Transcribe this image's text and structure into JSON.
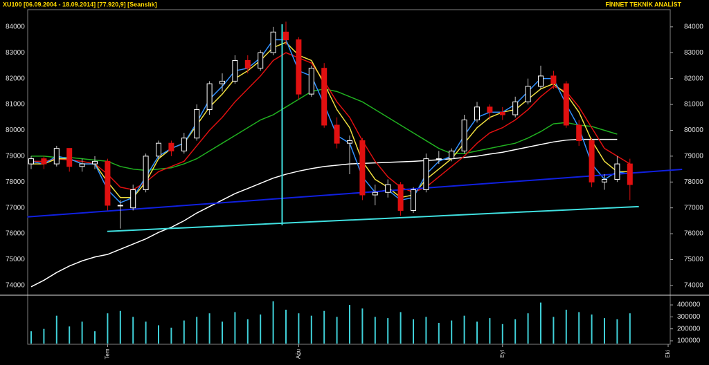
{
  "chart_data": {
    "type": "candlestick",
    "header_left": "XU100  [06.09.2004 - 18.09.2014]  [77.920,9]  [Seanslık]",
    "header_right": "FİNNET TEKNİK ANALİST",
    "categories": [
      null,
      null,
      null,
      null,
      null,
      null,
      "Tem",
      null,
      null,
      null,
      null,
      null,
      null,
      null,
      null,
      null,
      null,
      null,
      null,
      null,
      null,
      "Ağu",
      null,
      null,
      null,
      null,
      null,
      null,
      null,
      null,
      null,
      null,
      null,
      null,
      null,
      null,
      null,
      "Eyl",
      null,
      null,
      null,
      null,
      null,
      null,
      null,
      null,
      null,
      null,
      null,
      null,
      "Eki"
    ],
    "open": [
      78700,
      78900,
      78700,
      79300,
      78600,
      78700,
      78800,
      77100,
      77000,
      77700,
      79000,
      79500,
      79200,
      79700,
      80800,
      81800,
      81900,
      82700,
      82400,
      83000,
      83800,
      83500,
      81400,
      82400,
      80200,
      79500,
      79600,
      77500,
      77600,
      77900,
      76900,
      77700,
      78900,
      78900,
      79200,
      80400,
      80900,
      80700,
      80600,
      81100,
      81700,
      82100,
      81800,
      80200,
      79600,
      78000,
      78100,
      78700,
      null,
      null,
      null
    ],
    "high": [
      79000,
      79000,
      79400,
      79300,
      78900,
      79000,
      78900,
      77300,
      77900,
      79100,
      79600,
      79600,
      79900,
      81000,
      81900,
      82200,
      82900,
      82900,
      83100,
      84000,
      84200,
      83600,
      82500,
      82600,
      80500,
      79800,
      79700,
      77900,
      78100,
      78000,
      77800,
      79100,
      79200,
      79300,
      80600,
      81100,
      81000,
      80900,
      81300,
      82000,
      82500,
      82300,
      81900,
      80400,
      79700,
      78300,
      79000,
      78900,
      null,
      null,
      null
    ],
    "low": [
      78500,
      78500,
      78600,
      78400,
      78400,
      78500,
      76900,
      76200,
      76900,
      77600,
      78900,
      79000,
      79100,
      79600,
      80600,
      81500,
      81800,
      82200,
      82300,
      82900,
      83300,
      81200,
      81300,
      80100,
      79300,
      78300,
      77300,
      77100,
      77400,
      76700,
      76800,
      77600,
      78700,
      78800,
      79100,
      80300,
      80400,
      80400,
      80500,
      81000,
      81600,
      81600,
      80100,
      79400,
      77800,
      77700,
      78000,
      77300,
      null,
      null,
      null
    ],
    "close": [
      78900,
      78700,
      79300,
      78600,
      78700,
      78800,
      77100,
      77100,
      77700,
      79000,
      79500,
      79200,
      79700,
      80800,
      81800,
      81900,
      82700,
      82400,
      83000,
      83800,
      83500,
      81400,
      82400,
      80200,
      79500,
      79600,
      77500,
      77600,
      77900,
      76900,
      77700,
      78900,
      78900,
      79200,
      80400,
      80900,
      80700,
      80600,
      81100,
      81700,
      82100,
      81800,
      80200,
      79600,
      78000,
      78100,
      78700,
      77900,
      null,
      null,
      null
    ],
    "up_color": "#ffffff",
    "down_color": "#e01010",
    "ylim": [
      73650,
      84290
    ],
    "yticks": [
      74000,
      75000,
      76000,
      77000,
      78000,
      79000,
      80000,
      81000,
      82000,
      83000,
      84000
    ],
    "ma_lines": [
      {
        "color": "#ffffff",
        "values": [
          73950,
          74200,
          74500,
          74750,
          74950,
          75100,
          75200,
          75400,
          75600,
          75800,
          76050,
          76250,
          76500,
          76800,
          77050,
          77300,
          77550,
          77750,
          77950,
          78150,
          78300,
          78420,
          78520,
          78600,
          78650,
          78700,
          78720,
          78740,
          78760,
          78780,
          78800,
          78830,
          78860,
          78900,
          78950,
          79000,
          79080,
          79150,
          79250,
          79350,
          79450,
          79550,
          79620,
          79650,
          79650,
          79650,
          79650,
          null,
          null,
          null,
          null
        ]
      },
      {
        "color": "#20b020",
        "values": [
          79000,
          79000,
          78950,
          78950,
          78900,
          78850,
          78800,
          78600,
          78500,
          78450,
          78500,
          78550,
          78700,
          78900,
          79200,
          79500,
          79800,
          80100,
          80400,
          80600,
          80900,
          81200,
          81500,
          81600,
          81500,
          81300,
          81100,
          80800,
          80500,
          80200,
          79900,
          79600,
          79300,
          79100,
          79100,
          79200,
          79300,
          79400,
          79500,
          79700,
          79950,
          80250,
          80300,
          80200,
          80150,
          80000,
          79850,
          null,
          null,
          null,
          null
        ]
      },
      {
        "color": "#e01010",
        "values": [
          78800,
          78800,
          78900,
          78850,
          78800,
          78700,
          78300,
          77800,
          77700,
          78000,
          78400,
          78600,
          78800,
          79400,
          80000,
          80500,
          81100,
          81600,
          82100,
          82700,
          83000,
          82800,
          82600,
          81900,
          81100,
          80500,
          79600,
          78800,
          78200,
          77800,
          77600,
          77800,
          78200,
          78600,
          79000,
          79500,
          79900,
          80100,
          80400,
          80800,
          81300,
          81700,
          81500,
          80900,
          80100,
          79300,
          79000,
          78700,
          null,
          null,
          null
        ]
      },
      {
        "color": "#f0e040",
        "values": [
          78700,
          78700,
          78900,
          78900,
          78700,
          78700,
          78000,
          77400,
          77400,
          78000,
          78900,
          79300,
          79500,
          80200,
          80900,
          81400,
          82000,
          82300,
          82700,
          83200,
          83400,
          82900,
          82700,
          81800,
          80800,
          80100,
          78800,
          78100,
          77800,
          77400,
          77500,
          78100,
          78500,
          78900,
          79500,
          80100,
          80500,
          80700,
          80800,
          81200,
          81600,
          81800,
          81400,
          80700,
          79600,
          78800,
          78400,
          78400,
          null,
          null,
          null
        ]
      },
      {
        "color": "#3090ff",
        "values": [
          78800,
          78700,
          79000,
          78900,
          78700,
          78700,
          77700,
          77200,
          77400,
          78200,
          79000,
          79300,
          79500,
          80300,
          81200,
          81700,
          82300,
          82400,
          82800,
          83500,
          83500,
          82300,
          82100,
          81000,
          79800,
          79500,
          78200,
          77600,
          77700,
          77300,
          77400,
          78300,
          78800,
          79000,
          79800,
          80500,
          80700,
          80700,
          81000,
          81500,
          82000,
          82000,
          81000,
          80100,
          78700,
          78100,
          78400,
          78300,
          null,
          null,
          null
        ]
      }
    ],
    "trend_lines": [
      {
        "color": "#1020e0",
        "points": [
          [
            -0.3,
            76650
          ],
          [
            51.1,
            78490
          ]
        ]
      },
      {
        "color": "#40e0e0",
        "points": [
          [
            5.98,
            76090
          ],
          [
            47.7,
            77050
          ]
        ]
      },
      {
        "color": "#40e0e0",
        "points": [
          [
            19.7,
            84100
          ],
          [
            19.7,
            76330
          ]
        ]
      }
    ],
    "volume": [
      180000,
      200000,
      310000,
      220000,
      260000,
      180000,
      330000,
      350000,
      300000,
      260000,
      230000,
      210000,
      270000,
      300000,
      330000,
      260000,
      340000,
      280000,
      320000,
      430000,
      360000,
      330000,
      310000,
      350000,
      300000,
      400000,
      370000,
      300000,
      290000,
      340000,
      280000,
      300000,
      250000,
      270000,
      310000,
      260000,
      290000,
      240000,
      280000,
      330000,
      420000,
      300000,
      360000,
      340000,
      320000,
      290000,
      280000,
      330000,
      null,
      null,
      null
    ],
    "volume_color": "#40d0d8",
    "y2lim": [
      77000,
      464000
    ],
    "y2ticks": [
      100000,
      200000,
      300000,
      400000
    ]
  }
}
